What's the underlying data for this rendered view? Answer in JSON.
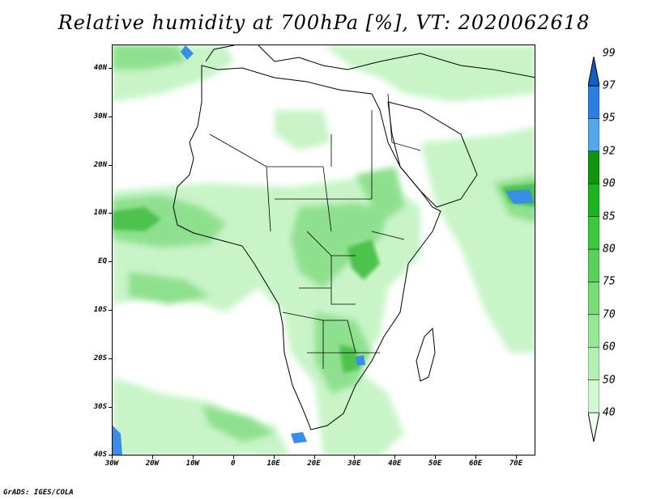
{
  "title": "Relative humidity at 700hPa [%], VT: 2020062618",
  "credit": "GrADS: IGES/COLA",
  "lat_labels": [
    "40N",
    "30N",
    "20N",
    "10N",
    "EQ",
    "10S",
    "20S",
    "30S",
    "40S"
  ],
  "lon_labels": [
    "30W",
    "20W",
    "10W",
    "0",
    "10E",
    "20E",
    "30E",
    "40E",
    "50E",
    "60E",
    "70E"
  ],
  "colorbar": {
    "levels": [
      "40",
      "50",
      "60",
      "70",
      "75",
      "80",
      "85",
      "90",
      "92",
      "95",
      "97",
      "99"
    ],
    "colors": [
      "#f0fff0",
      "#d2f8d2",
      "#b4f0b4",
      "#96e896",
      "#78dc78",
      "#5ad25a",
      "#3cc83c",
      "#1eb41e",
      "#0f960f",
      "#52a8e8",
      "#2a80e0",
      "#1060c8"
    ]
  },
  "map_colors": {
    "light": "#c8f4c8",
    "medium": "#8ee08e",
    "dark": "#4ec24e",
    "blue": "#3a8ee8",
    "coast": "#000000"
  }
}
